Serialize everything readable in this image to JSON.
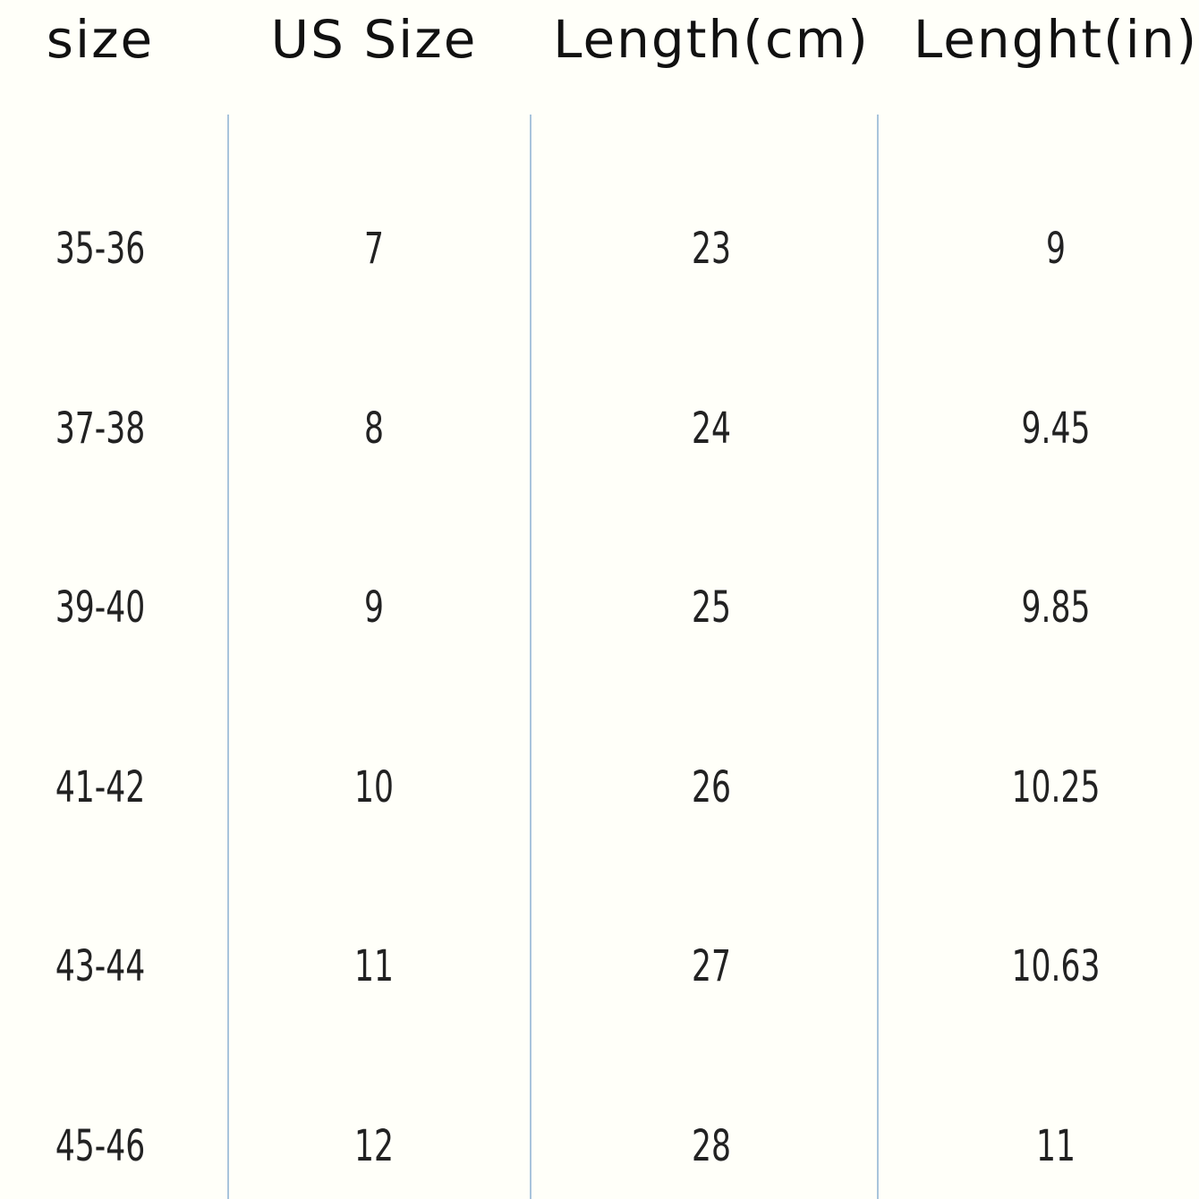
{
  "table": {
    "header": [
      "size",
      "US Size",
      "Length(cm)",
      "Lenght(in)"
    ],
    "rows": [
      [
        "35-36",
        "7",
        "23",
        "9"
      ],
      [
        "37-38",
        "8",
        "24",
        "9.45"
      ],
      [
        "39-40",
        "9",
        "25",
        "9.85"
      ],
      [
        "41-42",
        "10",
        "26",
        "10.25"
      ],
      [
        "43-44",
        "11",
        "27",
        "10.63"
      ],
      [
        "45-46",
        "12",
        "28",
        "11"
      ]
    ]
  }
}
